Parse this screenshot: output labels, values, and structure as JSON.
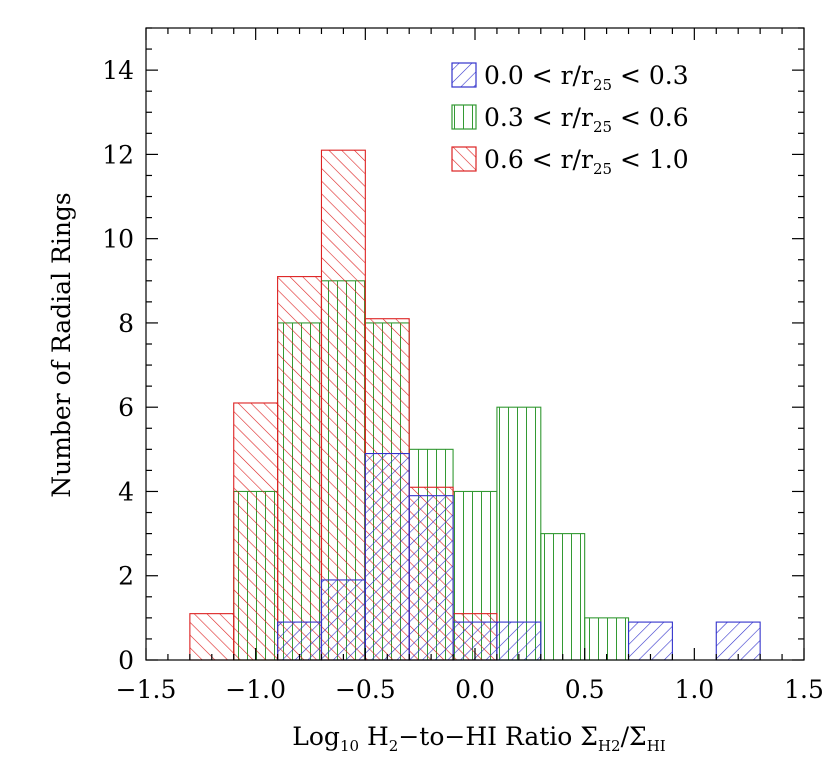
{
  "chart_data": {
    "type": "bar",
    "subtype": "overlapping-histogram",
    "title": "",
    "xlabel": {
      "prefix": "Log",
      "prefix_sub": "10",
      "part1": " H",
      "part1_sub": "2",
      "part2": "−to−HI Ratio Σ",
      "part2_sub": "H2",
      "part3": "/Σ",
      "part3_sub": "HI"
    },
    "ylabel": "Number of Radial Rings",
    "xlim": [
      -1.5,
      1.5
    ],
    "ylim": [
      0,
      15
    ],
    "xticks": [
      -1.5,
      -1.0,
      -0.5,
      0.0,
      0.5,
      1.0,
      1.5
    ],
    "xtick_labels": [
      "−1.5",
      "−1.0",
      "−0.5",
      "0.0",
      "0.5",
      "1.0",
      "1.5"
    ],
    "yticks": [
      0,
      2,
      4,
      6,
      8,
      10,
      12,
      14
    ],
    "ytick_labels": [
      "0",
      "2",
      "4",
      "6",
      "8",
      "10",
      "12",
      "14"
    ],
    "grid": false,
    "legend_position": "top-right",
    "series": [
      {
        "name": "0.0 < r/r25 < 0.3",
        "legend_label": {
          "pre": "0.0 < r/r",
          "sub": "25",
          "post": " < 0.3"
        },
        "color": "#3333cc",
        "hatch": "forward-diagonal",
        "bins": [
          {
            "x0": -0.9,
            "x1": -0.7,
            "count": 0.9
          },
          {
            "x0": -0.7,
            "x1": -0.5,
            "count": 1.9
          },
          {
            "x0": -0.5,
            "x1": -0.3,
            "count": 4.9
          },
          {
            "x0": -0.3,
            "x1": -0.1,
            "count": 3.9
          },
          {
            "x0": -0.1,
            "x1": 0.1,
            "count": 0.9
          },
          {
            "x0": 0.1,
            "x1": 0.3,
            "count": 0.9
          },
          {
            "x0": 0.7,
            "x1": 0.9,
            "count": 0.9
          },
          {
            "x0": 1.1,
            "x1": 1.3,
            "count": 0.9
          }
        ]
      },
      {
        "name": "0.3 < r/r25 < 0.6",
        "legend_label": {
          "pre": "0.3 < r/r",
          "sub": "25",
          "post": " < 0.6"
        },
        "color": "#339933",
        "hatch": "vertical",
        "bins": [
          {
            "x0": -1.1,
            "x1": -0.9,
            "count": 4
          },
          {
            "x0": -0.9,
            "x1": -0.7,
            "count": 8
          },
          {
            "x0": -0.7,
            "x1": -0.5,
            "count": 9
          },
          {
            "x0": -0.5,
            "x1": -0.3,
            "count": 8
          },
          {
            "x0": -0.3,
            "x1": -0.1,
            "count": 5
          },
          {
            "x0": -0.1,
            "x1": 0.1,
            "count": 4
          },
          {
            "x0": 0.1,
            "x1": 0.3,
            "count": 6
          },
          {
            "x0": 0.3,
            "x1": 0.5,
            "count": 3
          },
          {
            "x0": 0.5,
            "x1": 0.7,
            "count": 1
          }
        ]
      },
      {
        "name": "0.6 < r/r25 < 1.0",
        "legend_label": {
          "pre": "0.6 < r/r",
          "sub": "25",
          "post": " < 1.0"
        },
        "color": "#dd2222",
        "hatch": "backward-diagonal",
        "bins": [
          {
            "x0": -1.3,
            "x1": -1.1,
            "count": 1.1
          },
          {
            "x0": -1.1,
            "x1": -0.9,
            "count": 6.1
          },
          {
            "x0": -0.9,
            "x1": -0.7,
            "count": 9.1
          },
          {
            "x0": -0.7,
            "x1": -0.5,
            "count": 12.1
          },
          {
            "x0": -0.5,
            "x1": -0.3,
            "count": 8.1
          },
          {
            "x0": -0.3,
            "x1": -0.1,
            "count": 4.1
          },
          {
            "x0": -0.1,
            "x1": 0.1,
            "count": 1.1
          }
        ]
      }
    ]
  }
}
